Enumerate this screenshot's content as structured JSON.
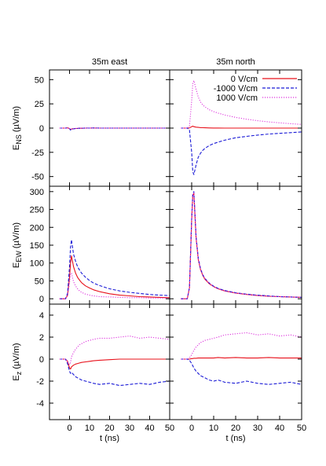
{
  "chart_data": {
    "type": "line",
    "columns": [
      "35m east",
      "35m north"
    ],
    "x": [
      -5,
      -3,
      -2,
      -1,
      0,
      0.5,
      1,
      2,
      3,
      4,
      5,
      6,
      8,
      10,
      12,
      15,
      20,
      25,
      30,
      35,
      40,
      45,
      50
    ],
    "xlabel": "t (ns)",
    "xlim": [
      -10,
      50
    ],
    "xticks": [
      "0",
      "10",
      "20",
      "30",
      "40",
      "50"
    ],
    "legend": {
      "placement": "top-right of upper-right panel",
      "entries": [
        {
          "label": "0 V/cm",
          "color": "#e8101a",
          "dash": "solid"
        },
        {
          "label": "-1000 V/cm",
          "color": "#1a1ad6",
          "dash": "dashed"
        },
        {
          "label": "1000 V/cm",
          "color": "#dd33dd",
          "dash": "dotted"
        }
      ]
    },
    "rows": [
      {
        "ylabel_main": "E",
        "ylabel_sub": "NS",
        "ylabel_unit": " (µV/m)",
        "ylim": [
          -60,
          60
        ],
        "yticks": [
          -50,
          -25,
          0,
          25,
          50
        ],
        "panels": [
          {
            "series": [
              {
                "name": "0 V/cm",
                "values": [
                  0,
                  0,
                  0,
                  0.3,
                  -0.5,
                  -1.5,
                  -1,
                  -0.6,
                  -0.4,
                  -0.3,
                  -0.2,
                  -0.2,
                  0,
                  0,
                  0.1,
                  0,
                  0,
                  0,
                  0,
                  0,
                  0,
                  0,
                  0
                ]
              },
              {
                "name": "-1000 V/cm",
                "values": [
                  0,
                  0,
                  0,
                  0.3,
                  -0.6,
                  -2.0,
                  -1.2,
                  -0.7,
                  -0.5,
                  -0.3,
                  -0.2,
                  -0.2,
                  0.1,
                  0,
                  0.2,
                  0,
                  0,
                  0,
                  0,
                  0,
                  0,
                  0,
                  0
                ]
              },
              {
                "name": "1000 V/cm",
                "values": [
                  0,
                  0,
                  0,
                  0.2,
                  -0.4,
                  -1.2,
                  -0.8,
                  -0.5,
                  -0.3,
                  -0.2,
                  -0.1,
                  -0.1,
                  0,
                  0.1,
                  0,
                  0,
                  0,
                  0,
                  0,
                  0,
                  0,
                  0,
                  0
                ]
              }
            ]
          },
          {
            "series": [
              {
                "name": "0 V/cm",
                "values": [
                  0,
                  0,
                  0,
                  0.2,
                  1.5,
                  2.0,
                  1.5,
                  1.0,
                  0.7,
                  0.5,
                  0.4,
                  0.3,
                  0.2,
                  0.1,
                  0.1,
                  0,
                  0,
                  0,
                  0,
                  0,
                  0,
                  0,
                  0
                ]
              },
              {
                "name": "-1000 V/cm",
                "values": [
                  0,
                  0,
                  0,
                  -2,
                  -25,
                  -45,
                  -48,
                  -38,
                  -30,
                  -26,
                  -23,
                  -21,
                  -18,
                  -16,
                  -14.5,
                  -12.5,
                  -10,
                  -8.5,
                  -7.2,
                  -6.2,
                  -5.4,
                  -4.7,
                  -4.0
                ]
              },
              {
                "name": "1000 V/cm",
                "values": [
                  0,
                  0,
                  0,
                  2,
                  28,
                  46,
                  49,
                  40,
                  32,
                  27,
                  24,
                  22,
                  19,
                  17,
                  15.5,
                  13.5,
                  11,
                  9.2,
                  7.6,
                  6.4,
                  5.4,
                  4.5,
                  3.8
                ]
              }
            ]
          }
        ]
      },
      {
        "ylabel_main": "E",
        "ylabel_sub": "EW",
        "ylabel_unit": " (µV/m)",
        "ylim": [
          -15,
          315
        ],
        "yticks": [
          0,
          50,
          100,
          150,
          200,
          250,
          300
        ],
        "panels": [
          {
            "series": [
              {
                "name": "0 V/cm",
                "values": [
                  0,
                  0,
                  0,
                  10,
                  60,
                  100,
                  120,
                  90,
                  72,
                  60,
                  52,
                  45,
                  36,
                  30,
                  25,
                  20,
                  14,
                  10,
                  8,
                  6,
                  5,
                  4,
                  3
                ]
              },
              {
                "name": "-1000 V/cm",
                "values": [
                  0,
                  0,
                  0,
                  15,
                  90,
                  145,
                  165,
                  125,
                  105,
                  90,
                  80,
                  72,
                  60,
                  51,
                  44,
                  37,
                  28,
                  22,
                  18,
                  15,
                  12,
                  10,
                  9
                ]
              },
              {
                "name": "1000 V/cm",
                "values": [
                  0,
                  0,
                  0,
                  8,
                  45,
                  70,
                  72,
                  48,
                  36,
                  28,
                  22,
                  18,
                  13,
                  10,
                  8,
                  6,
                  5,
                  4,
                  3,
                  3,
                  2,
                  2,
                  2
                ]
              }
            ]
          },
          {
            "series": [
              {
                "name": "0 V/cm",
                "values": [
                  0,
                  0,
                  0,
                  30,
                  220,
                  290,
                  295,
                  170,
                  110,
                  82,
                  66,
                  55,
                  42,
                  34,
                  28,
                  22,
                  16,
                  12,
                  9,
                  7,
                  6,
                  5,
                  4
                ]
              },
              {
                "name": "-1000 V/cm",
                "values": [
                  0,
                  0,
                  0,
                  32,
                  225,
                  295,
                  300,
                  175,
                  114,
                  85,
                  68,
                  57,
                  44,
                  35,
                  29,
                  23,
                  17,
                  13,
                  10,
                  8,
                  6,
                  5,
                  4
                ]
              },
              {
                "name": "1000 V/cm",
                "values": [
                  0,
                  0,
                  0,
                  31,
                  222,
                  292,
                  297,
                  172,
                  112,
                  83,
                  67,
                  56,
                  43,
                  34,
                  28,
                  22,
                  16,
                  12,
                  9,
                  7,
                  6,
                  5,
                  4
                ]
              }
            ]
          }
        ]
      },
      {
        "ylabel_main": "E",
        "ylabel_sub": "z",
        "ylabel_unit": " (µV/m)",
        "ylim": [
          -5.5,
          5
        ],
        "yticks": [
          -4,
          -2,
          0,
          2,
          4
        ],
        "panels": [
          {
            "series": [
              {
                "name": "0 V/cm",
                "values": [
                  0,
                  0,
                  0,
                  -0.2,
                  -0.8,
                  -0.9,
                  -0.7,
                  -0.55,
                  -0.45,
                  -0.4,
                  -0.35,
                  -0.3,
                  -0.25,
                  -0.2,
                  -0.15,
                  -0.1,
                  -0.05,
                  0,
                  0,
                  0,
                  0,
                  0,
                  0
                ]
              },
              {
                "name": "-1000 V/cm",
                "values": [
                  0,
                  0,
                  0,
                  -0.4,
                  -1.1,
                  -1.3,
                  -1.2,
                  -1.4,
                  -1.6,
                  -1.7,
                  -1.8,
                  -1.9,
                  -2.0,
                  -2.1,
                  -2.2,
                  -2.3,
                  -2.2,
                  -2.4,
                  -2.3,
                  -2.2,
                  -2.3,
                  -2.1,
                  -2.0
                ]
              },
              {
                "name": "1000 V/cm",
                "values": [
                  0,
                  0,
                  0,
                  -0.2,
                  -0.5,
                  -0.3,
                  0.2,
                  0.6,
                  0.9,
                  1.1,
                  1.3,
                  1.4,
                  1.6,
                  1.7,
                  1.8,
                  1.9,
                  1.9,
                  2.0,
                  2.1,
                  1.9,
                  2.0,
                  1.9,
                  1.8
                ]
              }
            ]
          },
          {
            "series": [
              {
                "name": "0 V/cm",
                "values": [
                  0,
                  0,
                  0,
                  0,
                  0.05,
                  0.05,
                  0.08,
                  0.08,
                  0.1,
                  0.1,
                  0.1,
                  0.1,
                  0.1,
                  0.1,
                  0.15,
                  0.1,
                  0.15,
                  0.1,
                  0.1,
                  0.15,
                  0.1,
                  0.1,
                  0.1
                ]
              },
              {
                "name": "-1000 V/cm",
                "values": [
                  0,
                  0,
                  0,
                  -0.1,
                  -0.4,
                  -0.6,
                  -0.8,
                  -1.1,
                  -1.3,
                  -1.5,
                  -1.6,
                  -1.7,
                  -1.9,
                  -2.0,
                  -1.9,
                  -2.1,
                  -2.2,
                  -2.0,
                  -2.2,
                  -2.3,
                  -2.2,
                  -2.1,
                  -2.3
                ]
              },
              {
                "name": "1000 V/cm",
                "values": [
                  0,
                  0,
                  0,
                  0.1,
                  0.4,
                  0.6,
                  0.8,
                  1.1,
                  1.3,
                  1.5,
                  1.6,
                  1.7,
                  1.8,
                  1.9,
                  2.0,
                  2.2,
                  2.3,
                  2.4,
                  2.2,
                  2.3,
                  2.1,
                  2.2,
                  2.0
                ]
              }
            ]
          }
        ]
      }
    ]
  }
}
